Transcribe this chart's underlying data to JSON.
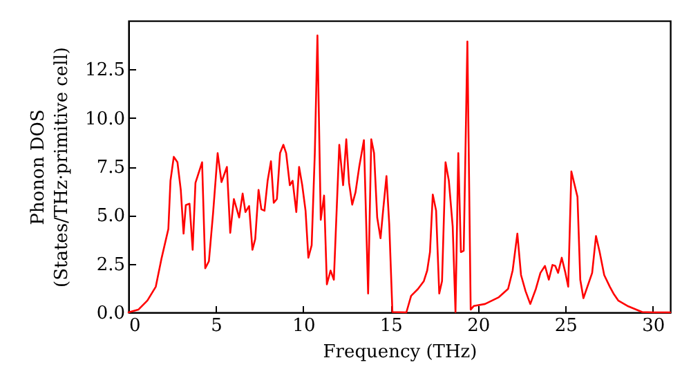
{
  "chart_data": {
    "type": "line",
    "xlabel": "Frequency (THz)",
    "ylabel": "Phonon DOS\n(States/THz·primitive cell)",
    "xlim": [
      0,
      31
    ],
    "ylim": [
      0,
      15
    ],
    "xticks": [
      0,
      5,
      10,
      15,
      20,
      25,
      30
    ],
    "yticks": [
      {
        "value": 0,
        "label": "0.0"
      },
      {
        "value": 2.5,
        "label": "2.5"
      },
      {
        "value": 5,
        "label": "5.0"
      },
      {
        "value": 7.5,
        "label": "7.5"
      },
      {
        "value": 10,
        "label": "10.0"
      },
      {
        "value": 12.5,
        "label": "12.5"
      }
    ],
    "grid": false,
    "line_style": "solid",
    "marker": "none",
    "x": [
      0.0,
      0.56,
      1.08,
      1.56,
      1.88,
      2.28,
      2.4,
      2.59,
      2.8,
      2.99,
      3.15,
      3.28,
      3.49,
      3.67,
      3.83,
      4.21,
      4.39,
      4.6,
      4.84,
      5.1,
      5.32,
      5.63,
      5.82,
      6.03,
      6.33,
      6.53,
      6.69,
      6.9,
      7.09,
      7.25,
      7.44,
      7.6,
      7.78,
      7.96,
      8.15,
      8.31,
      8.49,
      8.67,
      8.86,
      9.02,
      9.23,
      9.39,
      9.6,
      9.76,
      9.94,
      10.13,
      10.29,
      10.48,
      10.66,
      10.81,
      11.0,
      11.19,
      11.35,
      11.56,
      11.75,
      12.06,
      12.28,
      12.46,
      12.62,
      12.8,
      12.99,
      13.2,
      13.47,
      13.71,
      13.89,
      14.05,
      14.23,
      14.42,
      14.58,
      14.76,
      14.92,
      15.1,
      15.9,
      16.17,
      16.56,
      16.9,
      17.09,
      17.25,
      17.41,
      17.6,
      17.78,
      17.94,
      18.14,
      18.33,
      18.55,
      18.71,
      18.87,
      19.02,
      19.18,
      19.39,
      19.58,
      19.76,
      20.4,
      21.19,
      21.72,
      21.98,
      22.25,
      22.46,
      22.72,
      22.99,
      23.31,
      23.57,
      23.83,
      24.05,
      24.26,
      24.42,
      24.58,
      24.79,
      25.0,
      25.16,
      25.34,
      25.69,
      25.85,
      26.03,
      26.53,
      26.75,
      26.96,
      27.22,
      27.54,
      27.75,
      28.02,
      28.6,
      29.39,
      30.06,
      31.0
    ],
    "series": [
      {
        "color": "#ff0000",
        "values": [
          0.0,
          0.14,
          0.61,
          1.32,
          2.74,
          4.29,
          6.77,
          8.0,
          7.72,
          6.3,
          4.05,
          5.52,
          5.59,
          3.22,
          6.66,
          7.72,
          2.27,
          2.63,
          5.12,
          8.19,
          6.7,
          7.48,
          4.09,
          5.83,
          4.88,
          6.11,
          5.16,
          5.47,
          3.22,
          3.77,
          6.3,
          5.3,
          5.23,
          6.77,
          7.77,
          5.64,
          5.83,
          8.19,
          8.62,
          8.19,
          6.54,
          6.77,
          5.16,
          7.48,
          6.54,
          5.23,
          2.81,
          3.45,
          8.19,
          14.24,
          4.76,
          6.01,
          1.44,
          2.15,
          1.68,
          8.62,
          6.54,
          8.9,
          6.66,
          5.54,
          6.18,
          7.48,
          8.86,
          0.97,
          8.9,
          8.19,
          4.88,
          3.81,
          5.35,
          7.01,
          4.52,
          0.02,
          0.0,
          0.85,
          1.2,
          1.61,
          2.15,
          3.1,
          6.06,
          5.23,
          0.97,
          1.61,
          7.72,
          6.77,
          4.41,
          0.02,
          8.19,
          3.1,
          3.17,
          13.93,
          0.14,
          0.33,
          0.43,
          0.78,
          1.21,
          2.15,
          4.05,
          1.92,
          1.09,
          0.43,
          1.21,
          2.03,
          2.39,
          1.68,
          2.44,
          2.39,
          2.03,
          2.81,
          2.03,
          1.32,
          7.25,
          5.94,
          1.68,
          0.73,
          2.03,
          3.93,
          3.1,
          1.92,
          1.32,
          0.97,
          0.61,
          0.31,
          0.02,
          0.0,
          0.0
        ]
      }
    ]
  }
}
